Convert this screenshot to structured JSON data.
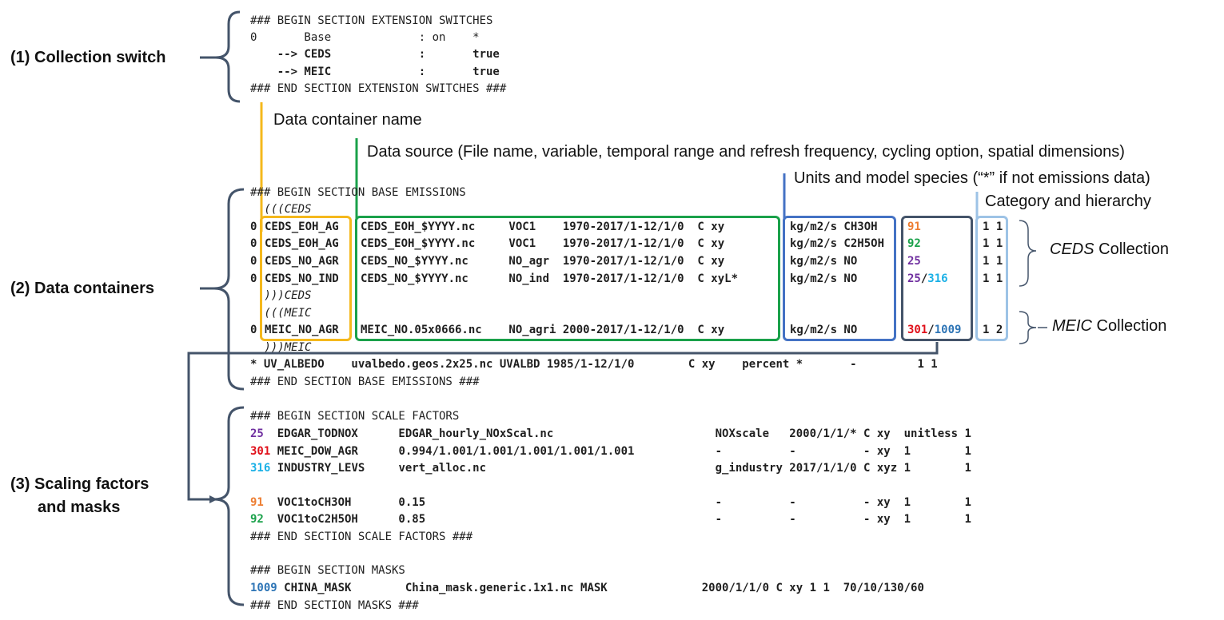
{
  "sections": {
    "s1": "(1) Collection switch",
    "s2": "(2) Data containers",
    "s3a": "(3) Scaling factors",
    "s3b": "and masks"
  },
  "annotations": {
    "container_name": "Data container name",
    "data_source": "Data source (File name, variable, temporal range and refresh frequency, cycling option, spatial dimensions)",
    "units_species": "Units and model species (“*” if not emissions data)",
    "category": "Category and hierarchy",
    "ceds_collection_name": "CEDS",
    "meic_collection_name": "MEIC",
    "collection_word": " Collection"
  },
  "switches": {
    "l1": "### BEGIN SECTION EXTENSION SWITCHES",
    "l2": "0       Base             : on    *",
    "l3": "    --> CEDS             :       true",
    "l4": "    --> MEIC             :       true",
    "l5": "### END SECTION EXTENSION SWITCHES ###"
  },
  "base": {
    "begin": "### BEGIN SECTION BASE EMISSIONS",
    "ceds_open": " (((CEDS",
    "ceds_close": " )))CEDS",
    "meic_open": " (((MEIC",
    "meic_close": " )))MEIC",
    "end": "### END SECTION BASE EMISSIONS ###",
    "rows": [
      {
        "flag": "0",
        "name": "CEDS_EOH_AG ",
        "source": "CEDS_EOH_$YYYY.nc     VOC1    1970-2017/1-12/1/0  C xy",
        "units": "kg/m2/s CH3OH",
        "scal": "91",
        "scal_class": "c-orange",
        "mask": "",
        "mask_class": "",
        "cat": "1 1"
      },
      {
        "flag": "0",
        "name": "CEDS_EOH_AG ",
        "source": "CEDS_EOH_$YYYY.nc     VOC1    1970-2017/1-12/1/0  C xy",
        "units": "kg/m2/s C2H5OH",
        "scal": "92",
        "scal_class": "c-green",
        "mask": "",
        "mask_class": "",
        "cat": "1 1"
      },
      {
        "flag": "0",
        "name": "CEDS_NO_AGR",
        "source": "CEDS_NO_$YYYY.nc      NO_agr  1970-2017/1-12/1/0  C xy",
        "units": "kg/m2/s NO",
        "scal": "25",
        "scal_class": "c-purple",
        "mask": "",
        "mask_class": "",
        "cat": "1 1"
      },
      {
        "flag": "0",
        "name": "CEDS_NO_IND",
        "source": "CEDS_NO_$YYYY.nc      NO_ind  1970-2017/1-12/1/0  C xyL*",
        "units": "kg/m2/s NO",
        "scal": "25",
        "scal_class": "c-purple",
        "mask": "316",
        "mask_class": "c-cyan",
        "cat": "1 1"
      },
      {
        "flag": "0",
        "name": "MEIC_NO_AGR",
        "source": "MEIC_NO.05x0666.nc    NO_agri 2000-2017/1-12/1/0  C xy",
        "units": "kg/m2/s NO",
        "scal": "301",
        "scal_class": "c-red",
        "mask": "1009",
        "mask_class": "c-blue",
        "cat": "1 2"
      }
    ],
    "uv_row": "* UV_ALBEDO    uvalbedo.geos.2x25.nc UVALBD 1985/1-12/1/0        C xy    percent *       -         1 1"
  },
  "scale": {
    "begin": "### BEGIN SECTION SCALE FACTORS",
    "end": "### END SECTION SCALE FACTORS ###",
    "rows": [
      {
        "id": "25",
        "cls": "c-purple",
        "text": "  EDGAR_TODNOX      EDGAR_hourly_NOxScal.nc                        NOXscale   2000/1/1/* C xy  unitless 1"
      },
      {
        "id": "301",
        "cls": "c-red",
        "text": " MEIC_DOW_AGR      0.994/1.001/1.001/1.001/1.001/1.001            -          -          - xy  1        1"
      },
      {
        "id": "316",
        "cls": "c-cyan",
        "text": " INDUSTRY_LEVS     vert_alloc.nc                                  g_industry 2017/1/1/0 C xyz 1        1"
      },
      {
        "id": "91",
        "cls": "c-orange",
        "text": "  VOC1toCH3OH       0.15                                           -          -          - xy  1        1"
      },
      {
        "id": "92",
        "cls": "c-green",
        "text": "  VOC1toC2H5OH      0.85                                           -          -          - xy  1        1"
      }
    ]
  },
  "masks": {
    "begin": "### BEGIN SECTION MASKS",
    "end": "### END SECTION MASKS ###",
    "row_id": "1009",
    "row_text": " CHINA_MASK        China_mask.generic.1x1.nc MASK              2000/1/1/0 C xy 1 1  70/10/130/60"
  },
  "colors": {
    "orange_box": "#f5b81c",
    "green_box": "#1aa14a",
    "units_box": "#4472c4",
    "scal_box": "#44546a",
    "cat_box": "#9dc3e6",
    "bracket": "#44546a"
  }
}
